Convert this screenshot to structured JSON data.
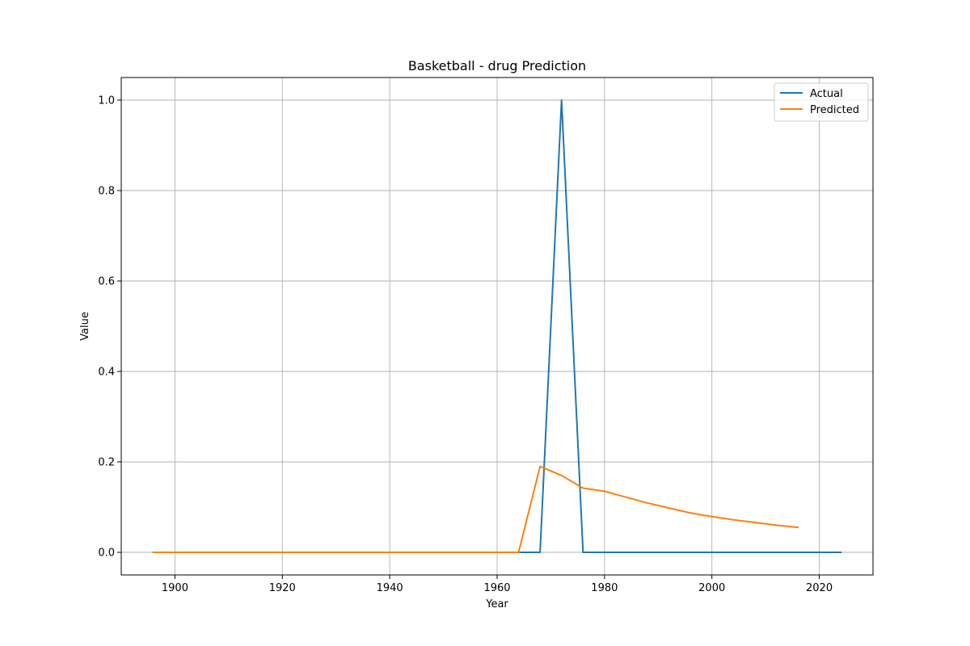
{
  "chart_data": {
    "type": "line",
    "title": "Basketball - drug Prediction",
    "xlabel": "Year",
    "ylabel": "Value",
    "xlim": [
      1890,
      2030
    ],
    "ylim": [
      -0.05,
      1.05
    ],
    "xticks": [
      1900,
      1920,
      1940,
      1960,
      1980,
      2000,
      2020
    ],
    "yticks": [
      0.0,
      0.2,
      0.4,
      0.6,
      0.8,
      1.0
    ],
    "grid": true,
    "legend_position": "top-right",
    "series": [
      {
        "name": "Actual",
        "color": "#1f77b4",
        "x": [
          1896,
          1900,
          1904,
          1908,
          1912,
          1920,
          1924,
          1928,
          1932,
          1936,
          1948,
          1952,
          1956,
          1960,
          1964,
          1968,
          1972,
          1976,
          1980,
          1984,
          1988,
          1992,
          1996,
          2000,
          2004,
          2008,
          2012,
          2016,
          2020,
          2024
        ],
        "y": [
          0,
          0,
          0,
          0,
          0,
          0,
          0,
          0,
          0,
          0,
          0,
          0,
          0,
          0,
          0,
          0,
          1.0,
          0,
          0,
          0,
          0,
          0,
          0,
          0,
          0,
          0,
          0,
          0,
          0,
          0
        ]
      },
      {
        "name": "Predicted",
        "color": "#ff7f0e",
        "x": [
          1896,
          1900,
          1904,
          1908,
          1912,
          1920,
          1924,
          1928,
          1932,
          1936,
          1948,
          1952,
          1956,
          1960,
          1964,
          1968,
          1972,
          1976,
          1980,
          1984,
          1988,
          1992,
          1996,
          2000,
          2004,
          2008,
          2012,
          2016
        ],
        "y": [
          0,
          0,
          0,
          0,
          0,
          0,
          0,
          0,
          0,
          0,
          0,
          0,
          0,
          0,
          0,
          0.19,
          0.17,
          0.142,
          0.135,
          0.122,
          0.109,
          0.098,
          0.087,
          0.079,
          0.072,
          0.066,
          0.06,
          0.055
        ]
      }
    ]
  }
}
